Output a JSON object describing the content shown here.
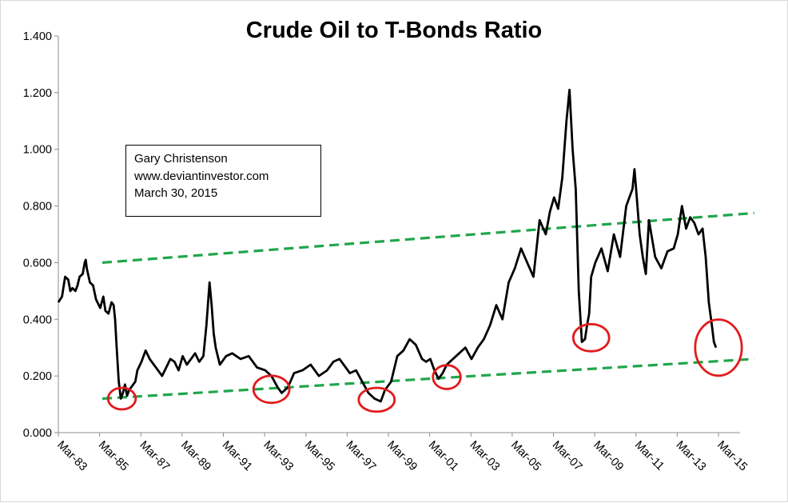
{
  "chart_data": {
    "type": "line",
    "title": "Crude Oil to T-Bonds Ratio",
    "xlabel": "",
    "ylabel": "",
    "ylim": [
      0,
      1.4
    ],
    "y_ticks": [
      "0.000",
      "0.200",
      "0.400",
      "0.600",
      "0.800",
      "1.000",
      "1.200",
      "1.400"
    ],
    "x_tick_labels": [
      "Mar-83",
      "Mar-85",
      "Mar-87",
      "Mar-89",
      "Mar-91",
      "Mar-93",
      "Mar-95",
      "Mar-97",
      "Mar-99",
      "Mar-01",
      "Mar-03",
      "Mar-05",
      "Mar-07",
      "Mar-09",
      "Mar-11",
      "Mar-13",
      "Mar-15"
    ],
    "x_tick_values": [
      1983.17,
      1985.17,
      1987.17,
      1989.17,
      1991.17,
      1993.17,
      1995.17,
      1997.17,
      1999.17,
      2001.17,
      2003.17,
      2005.17,
      2007.17,
      2009.17,
      2011.17,
      2013.17,
      2015.17
    ],
    "xlim": [
      1983.17,
      2015.17
    ],
    "grid": false,
    "legend": "none",
    "series": [
      {
        "color": "#000000",
        "x": [
          1983.17,
          1983.35,
          1983.5,
          1983.65,
          1983.75,
          1983.85,
          1984.0,
          1984.1,
          1984.2,
          1984.35,
          1984.45,
          1984.5,
          1984.55,
          1984.7,
          1984.85,
          1985.0,
          1985.2,
          1985.35,
          1985.45,
          1985.6,
          1985.75,
          1985.85,
          1985.92,
          1986.0,
          1986.1,
          1986.2,
          1986.3,
          1986.4,
          1986.5,
          1986.6,
          1986.7,
          1986.8,
          1986.9,
          1987.0,
          1987.2,
          1987.4,
          1987.6,
          1987.8,
          1988.0,
          1988.2,
          1988.4,
          1988.6,
          1988.8,
          1989.0,
          1989.2,
          1989.4,
          1989.6,
          1989.8,
          1990.0,
          1990.2,
          1990.35,
          1990.5,
          1990.6,
          1990.7,
          1990.8,
          1991.0,
          1991.3,
          1991.6,
          1992.0,
          1992.4,
          1992.8,
          1993.2,
          1993.5,
          1993.8,
          1994.0,
          1994.3,
          1994.6,
          1995.0,
          1995.4,
          1995.8,
          1996.2,
          1996.5,
          1996.8,
          1997.0,
          1997.3,
          1997.6,
          1997.9,
          1998.2,
          1998.5,
          1998.8,
          1999.0,
          1999.3,
          1999.6,
          1999.9,
          2000.2,
          2000.5,
          2000.8,
          2001.0,
          2001.2,
          2001.4,
          2001.6,
          2001.8,
          2002.0,
          2002.3,
          2002.6,
          2002.9,
          2003.2,
          2003.5,
          2003.8,
          2004.1,
          2004.4,
          2004.7,
          2005.0,
          2005.3,
          2005.6,
          2005.9,
          2006.2,
          2006.5,
          2006.8,
          2007.0,
          2007.2,
          2007.4,
          2007.6,
          2007.8,
          2007.95,
          2008.1,
          2008.25,
          2008.4,
          2008.55,
          2008.7,
          2008.8,
          2008.9,
          2009.0,
          2009.2,
          2009.5,
          2009.8,
          2010.1,
          2010.4,
          2010.7,
          2011.0,
          2011.1,
          2011.2,
          2011.35,
          2011.5,
          2011.65,
          2011.8,
          2012.1,
          2012.4,
          2012.7,
          2013.0,
          2013.2,
          2013.4,
          2013.6,
          2013.8,
          2014.0,
          2014.2,
          2014.4,
          2014.55,
          2014.7,
          2014.85,
          2014.95,
          2015.05
        ],
        "values": [
          0.46,
          0.48,
          0.55,
          0.54,
          0.5,
          0.51,
          0.5,
          0.52,
          0.55,
          0.56,
          0.6,
          0.61,
          0.58,
          0.53,
          0.52,
          0.47,
          0.44,
          0.48,
          0.43,
          0.42,
          0.46,
          0.45,
          0.4,
          0.3,
          0.18,
          0.12,
          0.14,
          0.17,
          0.13,
          0.15,
          0.16,
          0.17,
          0.18,
          0.22,
          0.25,
          0.29,
          0.26,
          0.24,
          0.22,
          0.2,
          0.23,
          0.26,
          0.25,
          0.22,
          0.27,
          0.24,
          0.26,
          0.28,
          0.25,
          0.27,
          0.38,
          0.53,
          0.45,
          0.35,
          0.3,
          0.24,
          0.27,
          0.28,
          0.26,
          0.27,
          0.23,
          0.22,
          0.2,
          0.16,
          0.14,
          0.16,
          0.21,
          0.22,
          0.24,
          0.2,
          0.22,
          0.25,
          0.26,
          0.24,
          0.21,
          0.22,
          0.18,
          0.14,
          0.12,
          0.11,
          0.15,
          0.18,
          0.27,
          0.29,
          0.33,
          0.31,
          0.26,
          0.25,
          0.26,
          0.22,
          0.19,
          0.21,
          0.24,
          0.26,
          0.28,
          0.3,
          0.26,
          0.3,
          0.33,
          0.38,
          0.45,
          0.4,
          0.53,
          0.58,
          0.65,
          0.6,
          0.55,
          0.75,
          0.7,
          0.78,
          0.83,
          0.79,
          0.9,
          1.1,
          1.21,
          1.0,
          0.86,
          0.5,
          0.32,
          0.33,
          0.38,
          0.42,
          0.55,
          0.6,
          0.65,
          0.57,
          0.7,
          0.62,
          0.8,
          0.86,
          0.93,
          0.84,
          0.7,
          0.62,
          0.56,
          0.75,
          0.62,
          0.58,
          0.64,
          0.65,
          0.7,
          0.8,
          0.72,
          0.76,
          0.74,
          0.7,
          0.72,
          0.62,
          0.46,
          0.38,
          0.32,
          0.3
        ]
      }
    ],
    "trend_lines": [
      {
        "color": "#1fa64a",
        "x": [
          1985.3,
          2016.9
        ],
        "values": [
          0.6,
          0.775
        ]
      },
      {
        "color": "#1fa64a",
        "x": [
          1985.3,
          2016.9
        ],
        "values": [
          0.12,
          0.26
        ]
      }
    ],
    "circles": [
      {
        "color": "#e31a1c",
        "cx": 1986.25,
        "cy": 0.12,
        "rx_years": 0.67,
        "ry_value": 0.038
      },
      {
        "color": "#e31a1c",
        "cx": 1993.5,
        "cy": 0.153,
        "rx_years": 0.87,
        "ry_value": 0.048
      },
      {
        "color": "#e31a1c",
        "cx": 1998.6,
        "cy": 0.116,
        "rx_years": 0.87,
        "ry_value": 0.042
      },
      {
        "color": "#e31a1c",
        "cx": 2002.0,
        "cy": 0.196,
        "rx_years": 0.67,
        "ry_value": 0.042
      },
      {
        "color": "#e31a1c",
        "cx": 2009.0,
        "cy": 0.335,
        "rx_years": 0.87,
        "ry_value": 0.048
      },
      {
        "color": "#e31a1c",
        "cx": 2015.17,
        "cy": 0.3,
        "rx_years": 1.13,
        "ry_value": 0.099
      }
    ],
    "annotation": [
      "Gary Christenson",
      "www.deviantinvestor.com",
      "March 30, 2015"
    ]
  }
}
